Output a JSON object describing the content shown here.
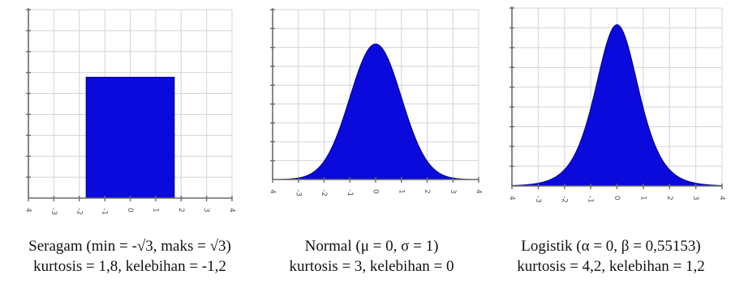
{
  "chart_data": [
    {
      "type": "area",
      "distribution": "uniform",
      "x_ticks": [
        "4",
        "-3",
        "-2",
        "-1",
        "0",
        "1",
        "2",
        "3",
        "4"
      ],
      "xlim": [
        -4,
        4
      ],
      "ylim": [
        0,
        0.45
      ],
      "params": {
        "min": -1.732,
        "max": 1.732
      },
      "series_color": "#0a0adc",
      "caption_line1": "Seragam (min = -√3, maks = √3)",
      "caption_line2": "kurtosis = 1,8, kelebihan = -1,2"
    },
    {
      "type": "area",
      "distribution": "normal",
      "x_ticks": [
        "4",
        "-3",
        "-2",
        "-1",
        "0",
        "1",
        "2",
        "3",
        "4"
      ],
      "xlim": [
        -4,
        4
      ],
      "ylim": [
        0,
        0.5
      ],
      "params": {
        "mu": 0,
        "sigma": 1
      },
      "series_color": "#0a0adc",
      "caption_line1": "Normal (μ = 0, σ = 1)",
      "caption_line2": "kurtosis = 3, kelebihan = 0"
    },
    {
      "type": "area",
      "distribution": "logistic",
      "x_ticks": [
        "4",
        "-3",
        "-2",
        "-1",
        "0",
        "1",
        "2",
        "3",
        "4"
      ],
      "xlim": [
        -4,
        4
      ],
      "ylim": [
        0,
        0.5
      ],
      "params": {
        "alpha": 0,
        "beta": 0.55153
      },
      "series_color": "#0a0adc",
      "caption_line1": "Logistik (α = 0, β = 0,55153)",
      "caption_line2": "kurtosis = 4,2, kelebihan = 1,2"
    }
  ]
}
